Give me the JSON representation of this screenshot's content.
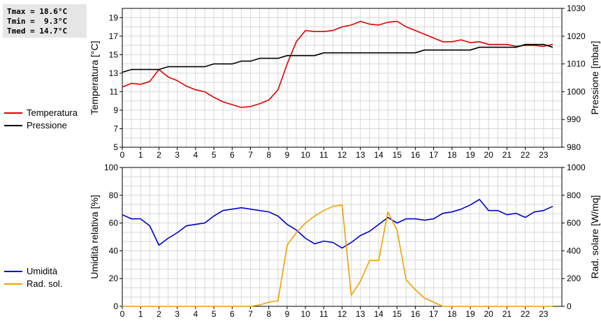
{
  "stats": {
    "tmax": "Tmax = 18.6°C",
    "tmin": "Tmin =  9.3°C",
    "tmed": "Tmed = 14.7°C"
  },
  "chart_data": [
    {
      "type": "line",
      "xlabel": "",
      "xlim": [
        0,
        24
      ],
      "x_ticks": [
        0,
        1,
        2,
        3,
        4,
        5,
        6,
        7,
        8,
        9,
        10,
        11,
        12,
        13,
        14,
        15,
        16,
        17,
        18,
        19,
        20,
        21,
        22,
        23
      ],
      "ylabel": "Temperatura [°C]",
      "ylim": [
        5,
        20
      ],
      "y_ticks": [
        5,
        7,
        9,
        11,
        13,
        15,
        17,
        19
      ],
      "y2label": "Pressione [mbar]",
      "y2lim": [
        980,
        1030
      ],
      "y2_ticks": [
        980,
        990,
        1000,
        1010,
        1020,
        1030
      ],
      "grid": true,
      "legend": "left",
      "series": [
        {
          "name": "Temperatura",
          "color": "#e00000",
          "axis": "left",
          "x": [
            0,
            0.5,
            1,
            1.5,
            2,
            2.5,
            3,
            3.5,
            4,
            4.5,
            5,
            5.5,
            6,
            6.5,
            7,
            7.5,
            8,
            8.5,
            9,
            9.5,
            10,
            10.5,
            11,
            11.5,
            12,
            12.5,
            13,
            13.5,
            14,
            14.5,
            15,
            15.5,
            16,
            16.5,
            17,
            17.5,
            18,
            18.5,
            19,
            19.5,
            20,
            20.5,
            21,
            21.5,
            22,
            22.5,
            23,
            23.5
          ],
          "y": [
            11.5,
            11.9,
            11.8,
            12.1,
            13.4,
            12.6,
            12.2,
            11.6,
            11.2,
            11.0,
            10.4,
            9.9,
            9.6,
            9.3,
            9.4,
            9.7,
            10.1,
            11.2,
            14.0,
            16.4,
            17.6,
            17.5,
            17.5,
            17.6,
            18.0,
            18.2,
            18.6,
            18.3,
            18.2,
            18.5,
            18.6,
            18.0,
            17.6,
            17.2,
            16.8,
            16.4,
            16.4,
            16.6,
            16.3,
            16.4,
            16.1,
            16.1,
            16.1,
            15.9,
            16.0,
            16.0,
            15.9,
            16.1
          ]
        },
        {
          "name": "Pressione",
          "color": "#000000",
          "axis": "right",
          "x": [
            0,
            0.5,
            1,
            1.5,
            2,
            2.5,
            3,
            3.5,
            4,
            4.5,
            5,
            5.5,
            6,
            6.5,
            7,
            7.5,
            8,
            8.5,
            9,
            9.5,
            10,
            10.5,
            11,
            11.5,
            12,
            12.5,
            13,
            13.5,
            14,
            14.5,
            15,
            15.5,
            16,
            16.5,
            17,
            17.5,
            18,
            18.5,
            19,
            19.5,
            20,
            20.5,
            21,
            21.5,
            22,
            22.5,
            23,
            23.5
          ],
          "y": [
            1007.0,
            1008.0,
            1008.0,
            1008.0,
            1008.0,
            1009.0,
            1009.0,
            1009.0,
            1009.0,
            1009.0,
            1010.0,
            1010.0,
            1010.0,
            1011.0,
            1011.0,
            1012.0,
            1012.0,
            1012.0,
            1013.0,
            1013.0,
            1013.0,
            1013.0,
            1014.0,
            1014.0,
            1014.0,
            1014.0,
            1014.0,
            1014.0,
            1014.0,
            1014.0,
            1014.0,
            1014.0,
            1014.0,
            1015.0,
            1015.0,
            1015.0,
            1015.0,
            1015.0,
            1015.0,
            1016.0,
            1016.0,
            1016.0,
            1016.0,
            1016.0,
            1017.0,
            1017.0,
            1017.0,
            1016.0
          ]
        }
      ]
    },
    {
      "type": "line",
      "xlabel": "",
      "xlim": [
        0,
        24
      ],
      "x_ticks": [
        0,
        1,
        2,
        3,
        4,
        5,
        6,
        7,
        8,
        9,
        10,
        11,
        12,
        13,
        14,
        15,
        16,
        17,
        18,
        19,
        20,
        21,
        22,
        23
      ],
      "ylabel": "Umidità relativa [%]",
      "ylim": [
        0,
        100
      ],
      "y_ticks": [
        0,
        20,
        40,
        60,
        80,
        100
      ],
      "y2label": "Rad. solare [W/mq]",
      "y2lim": [
        0,
        1000
      ],
      "y2_ticks": [
        0,
        200,
        400,
        600,
        800,
        1000
      ],
      "grid": true,
      "legend": "left",
      "series": [
        {
          "name": "Umidità",
          "color": "#0000cc",
          "axis": "left",
          "x": [
            0,
            0.5,
            1,
            1.5,
            2,
            2.5,
            3,
            3.5,
            4,
            4.5,
            5,
            5.5,
            6,
            6.5,
            7,
            7.5,
            8,
            8.5,
            9,
            9.5,
            10,
            10.5,
            11,
            11.5,
            12,
            12.5,
            13,
            13.5,
            14,
            14.5,
            15,
            15.5,
            16,
            16.5,
            17,
            17.5,
            18,
            18.5,
            19,
            19.5,
            20,
            20.5,
            21,
            21.5,
            22,
            22.5,
            23,
            23.5
          ],
          "y": [
            66,
            63,
            63,
            58,
            44,
            49,
            53,
            58,
            59,
            60,
            65,
            69,
            70,
            71,
            70,
            69,
            68,
            65,
            59,
            55,
            49,
            45,
            47,
            46,
            42,
            46,
            51,
            54,
            59,
            64,
            60,
            63,
            63,
            62,
            63,
            67,
            68,
            70,
            73,
            77,
            69,
            69,
            66,
            67,
            64,
            68,
            69,
            72
          ]
        },
        {
          "name": "Rad. sol.",
          "color": "#f0a000",
          "axis": "right",
          "x": [
            0,
            0.5,
            1,
            1.5,
            2,
            2.5,
            3,
            3.5,
            4,
            4.5,
            5,
            5.5,
            6,
            6.5,
            7,
            7.5,
            8,
            8.5,
            9,
            9.5,
            10,
            10.5,
            11,
            11.5,
            12,
            12.5,
            13,
            13.5,
            14,
            14.5,
            15,
            15.5,
            16,
            16.5,
            17,
            17.5,
            18,
            18.5,
            19,
            19.5,
            20,
            20.5,
            21,
            21.5,
            22,
            22.5,
            23,
            23.5
          ],
          "y": [
            0,
            0,
            0,
            0,
            0,
            0,
            0,
            0,
            0,
            0,
            0,
            0,
            0,
            0,
            0,
            10,
            30,
            40,
            440,
            530,
            600,
            650,
            690,
            720,
            730,
            80,
            180,
            330,
            330,
            680,
            550,
            190,
            120,
            60,
            30,
            0,
            0,
            0,
            0,
            0,
            0,
            0,
            0,
            0,
            0,
            0,
            0,
            0
          ]
        }
      ]
    }
  ]
}
